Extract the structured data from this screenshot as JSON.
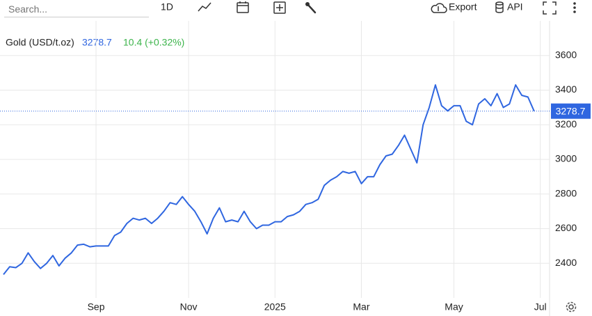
{
  "toolbar": {
    "search_placeholder": "Search...",
    "interval": "1D",
    "export": "Export",
    "api": "API"
  },
  "chart_data": {
    "type": "line",
    "title": "Gold (USD/t.oz)",
    "change": "10.4 (+0.32%)",
    "categories": [
      null,
      null,
      null,
      null,
      null,
      null,
      null,
      null,
      null,
      null,
      null,
      null,
      null,
      null,
      null,
      "Sep",
      null,
      null,
      null,
      null,
      null,
      null,
      null,
      null,
      null,
      null,
      null,
      null,
      null,
      null,
      "Nov",
      null,
      null,
      null,
      null,
      null,
      null,
      null,
      null,
      null,
      null,
      null,
      null,
      null,
      "2025",
      null,
      null,
      null,
      null,
      null,
      null,
      null,
      null,
      null,
      null,
      null,
      null,
      null,
      "Mar",
      null,
      null,
      null,
      null,
      null,
      null,
      null,
      null,
      null,
      null,
      null,
      null,
      null,
      null,
      "May",
      null,
      null,
      null,
      null,
      null,
      null,
      null,
      null,
      null,
      null,
      null,
      null,
      null,
      "Jul"
    ],
    "values": [
      2335,
      2380,
      2375,
      2400,
      2460,
      2410,
      2370,
      2400,
      2445,
      2385,
      2430,
      2460,
      2505,
      2510,
      2495,
      2500,
      2500,
      2500,
      2560,
      2580,
      2630,
      2660,
      2650,
      2660,
      2630,
      2660,
      2700,
      2750,
      2740,
      2785,
      2740,
      2700,
      2640,
      2570,
      2660,
      2720,
      2640,
      2650,
      2640,
      2700,
      2640,
      2600,
      2620,
      2620,
      2640,
      2640,
      2670,
      2680,
      2700,
      2740,
      2750,
      2770,
      2850,
      2880,
      2900,
      2930,
      2920,
      2930,
      2860,
      2900,
      2900,
      2970,
      3020,
      3030,
      3080,
      3140,
      3060,
      2980,
      3200,
      3300,
      3430,
      3310,
      3280,
      3310,
      3310,
      3220,
      3200,
      3320,
      3350,
      3310,
      3380,
      3300,
      3320,
      3430,
      3370,
      3360,
      3278.7,
      null
    ],
    "color": "#2f66e0",
    "change_color": "#3cb44b",
    "ylim": [
      2200,
      3800
    ],
    "yticks": [
      2400,
      2600,
      2800,
      3000,
      3200,
      3400,
      3600
    ],
    "grid": true
  }
}
